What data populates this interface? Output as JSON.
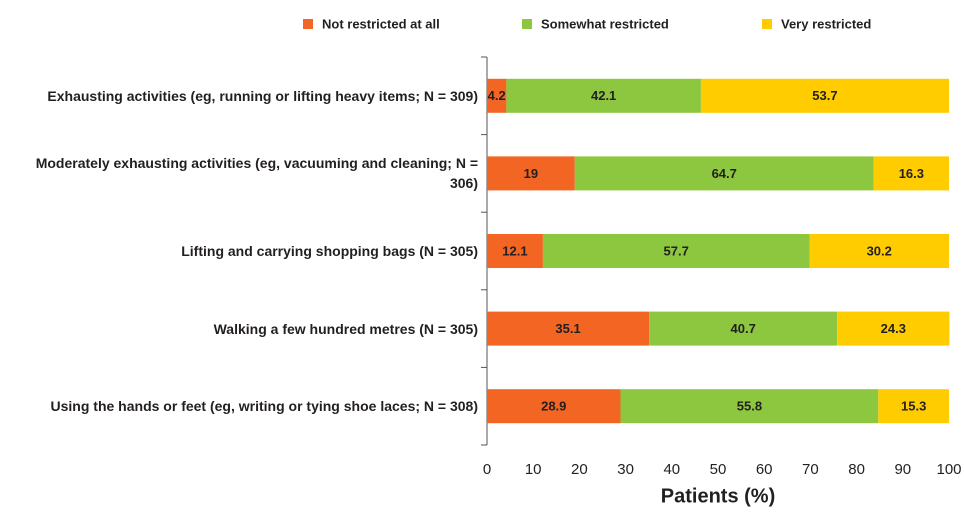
{
  "chart_data": {
    "type": "stacked_bar_horizontal",
    "categories": [
      "Exhausting activities (eg, running or lifting heavy items; N = 309)",
      "Moderately exhausting activities (eg, vacuuming and cleaning; N = 306)",
      "Lifting and carrying shopping bags (N = 305)",
      "Walking a few hundred metres (N = 305)",
      "Using the hands or feet (eg, writing or tying shoe laces; N = 308)"
    ],
    "series": [
      {
        "name": "Not restricted at all",
        "color": "#f26522",
        "values": [
          4.2,
          19,
          12.1,
          35.1,
          28.9
        ]
      },
      {
        "name": "Somewhat restricted",
        "color": "#8dc63f",
        "values": [
          42.1,
          64.7,
          57.7,
          40.7,
          55.8
        ]
      },
      {
        "name": "Very restricted",
        "color": "#ffcc00",
        "values": [
          53.7,
          16.3,
          30.2,
          24.3,
          15.3
        ]
      }
    ],
    "xlabel": "Patients (%)",
    "xlim": [
      0,
      100
    ],
    "xticks": [
      0,
      10,
      20,
      30,
      40,
      50,
      60,
      70,
      80,
      90,
      100
    ],
    "legend": "top"
  }
}
